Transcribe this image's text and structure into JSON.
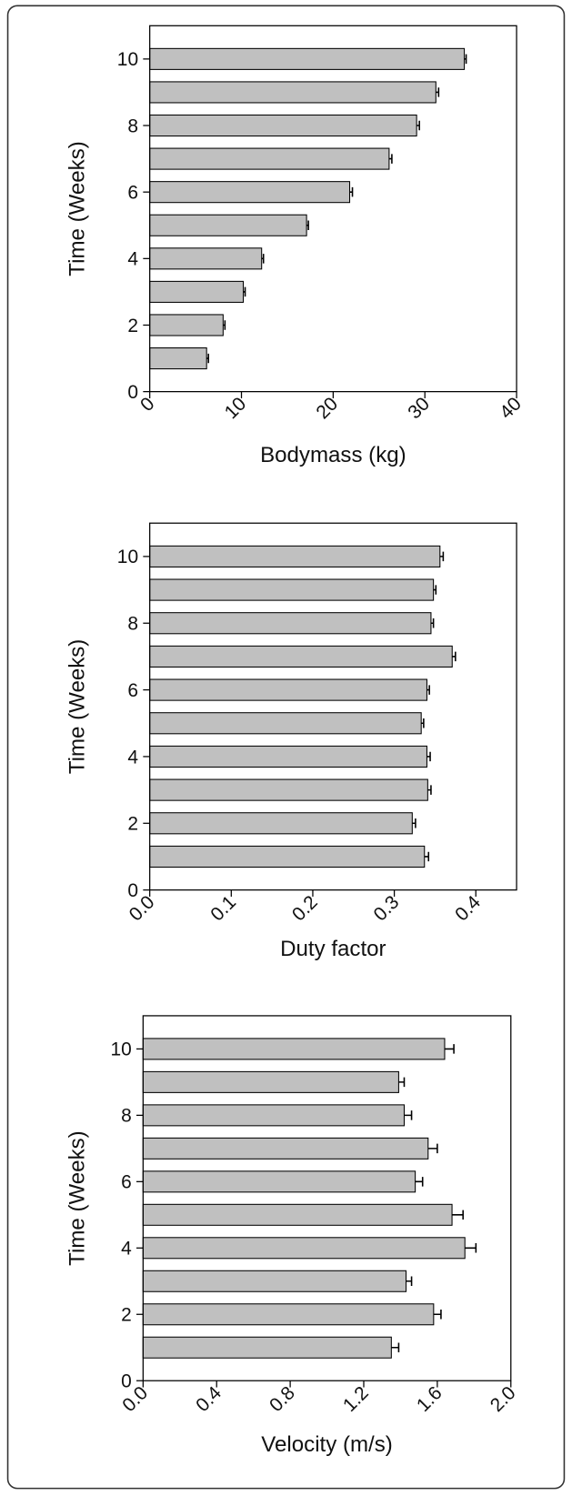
{
  "chart_data": [
    {
      "type": "bar",
      "orientation": "horizontal",
      "x_label": "Bodymass (kg)",
      "y_label": "Time (Weeks)",
      "y": [
        1,
        2,
        3,
        4,
        5,
        6,
        7,
        8,
        9,
        10
      ],
      "values": [
        6.2,
        8.0,
        10.2,
        12.2,
        17.1,
        21.8,
        26.1,
        29.1,
        31.2,
        34.3
      ],
      "errors": [
        0.2,
        0.2,
        0.2,
        0.2,
        0.2,
        0.3,
        0.3,
        0.3,
        0.3,
        0.2
      ],
      "color": "#c0c0c0",
      "xlim": [
        0,
        40
      ],
      "xticks": [
        0,
        10,
        20,
        30,
        40
      ],
      "ylim": [
        0,
        11
      ],
      "yticks": [
        0,
        2,
        4,
        6,
        8,
        10
      ]
    },
    {
      "type": "bar",
      "orientation": "horizontal",
      "x_label": "Duty factor",
      "y_label": "Time (Weeks)",
      "y": [
        1,
        2,
        3,
        4,
        5,
        6,
        7,
        8,
        9,
        10
      ],
      "values": [
        0.337,
        0.322,
        0.341,
        0.34,
        0.333,
        0.34,
        0.371,
        0.345,
        0.348,
        0.356
      ],
      "errors": [
        0.005,
        0.004,
        0.004,
        0.004,
        0.003,
        0.003,
        0.004,
        0.003,
        0.003,
        0.004
      ],
      "color": "#c0c0c0",
      "xlim": [
        0,
        0.45
      ],
      "xticks": [
        {
          "value": 0,
          "label": "0.0"
        },
        0.1,
        0.2,
        0.3,
        0.4
      ],
      "ylim": [
        0,
        11
      ],
      "yticks": [
        0,
        2,
        4,
        6,
        8,
        10
      ]
    },
    {
      "type": "bar",
      "orientation": "horizontal",
      "x_label": "Velocity (m/s)",
      "y_label": "Time (Weeks)",
      "y": [
        1,
        2,
        3,
        4,
        5,
        6,
        7,
        8,
        9,
        10
      ],
      "values": [
        1.35,
        1.58,
        1.43,
        1.75,
        1.68,
        1.48,
        1.55,
        1.42,
        1.39,
        1.64
      ],
      "errors": [
        0.04,
        0.04,
        0.03,
        0.06,
        0.06,
        0.04,
        0.05,
        0.04,
        0.03,
        0.05
      ],
      "color": "#c0c0c0",
      "xlim": [
        0,
        2
      ],
      "xticks": [
        {
          "value": 0,
          "label": "0.0"
        },
        0.4,
        0.8,
        1.2,
        1.6,
        {
          "value": 2,
          "label": "2.0"
        }
      ],
      "ylim": [
        0,
        11
      ],
      "yticks": [
        0,
        2,
        4,
        6,
        8,
        10
      ]
    }
  ]
}
